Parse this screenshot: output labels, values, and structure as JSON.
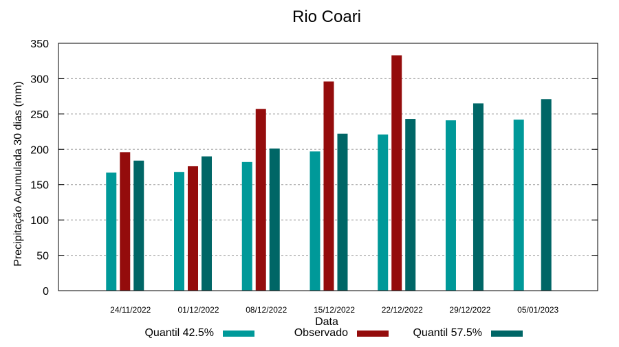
{
  "chart_data": {
    "type": "bar",
    "title": "Rio Coari",
    "xlabel": "Data",
    "ylabel": "Precipitação Acumulada 30 dias (mm)",
    "ylim": [
      0,
      350
    ],
    "yticks": [
      0,
      50,
      100,
      150,
      200,
      250,
      300,
      350
    ],
    "grid": true,
    "legend_position": "bottom",
    "categories": [
      "24/11/2022",
      "01/12/2022",
      "08/12/2022",
      "15/12/2022",
      "22/12/2022",
      "29/12/2022",
      "05/01/2023"
    ],
    "series": [
      {
        "name": "Quantil 42.5%",
        "color": "#009999",
        "values": [
          167,
          168,
          182,
          197,
          221,
          241,
          242
        ]
      },
      {
        "name": "Observado",
        "color": "#940C0C",
        "values": [
          196,
          176,
          257,
          296,
          333,
          null,
          null
        ]
      },
      {
        "name": "Quantil 57.5%",
        "color": "#006666",
        "values": [
          184,
          190,
          201,
          222,
          243,
          265,
          271
        ]
      }
    ]
  }
}
